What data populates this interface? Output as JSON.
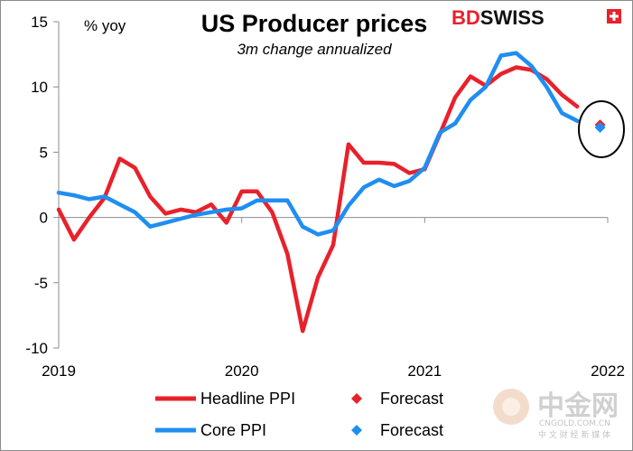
{
  "chart_data": {
    "type": "line",
    "title": "US Producer prices",
    "subtitle": "3m change annualized",
    "ylabel": "% yoy",
    "ylim": [
      -10,
      15
    ],
    "yticks": [
      15,
      10,
      5,
      0,
      -5,
      -10
    ],
    "ytick_labels": [
      "15",
      "10",
      "5",
      "0",
      "-5",
      "-10"
    ],
    "xlim": [
      0,
      36
    ],
    "xticks": [
      0,
      12,
      24,
      36
    ],
    "xtick_labels": [
      "2019",
      "2020",
      "2021",
      "2022"
    ],
    "series": [
      {
        "name": "Headline PPI",
        "color": "#e8212b",
        "x": [
          0,
          1,
          2,
          3,
          4,
          5,
          6,
          7,
          8,
          9,
          10,
          11,
          12,
          13,
          14,
          15,
          16,
          17,
          18,
          19,
          20,
          21,
          22,
          23,
          24,
          25,
          26,
          27,
          28,
          29,
          30,
          31,
          32,
          33,
          34
        ],
        "values": [
          0.6,
          -1.7,
          0.0,
          1.5,
          4.5,
          3.8,
          1.6,
          0.3,
          0.6,
          0.4,
          1.0,
          -0.4,
          2.0,
          2.0,
          0.4,
          -2.8,
          -8.7,
          -4.6,
          -2.1,
          5.6,
          4.2,
          4.2,
          4.1,
          3.4,
          3.7,
          6.4,
          9.2,
          10.8,
          10.1,
          11.0,
          11.5,
          11.3,
          10.6,
          9.4,
          8.5
        ]
      },
      {
        "name": "Core PPI",
        "color": "#1f8ef1",
        "x": [
          0,
          1,
          2,
          3,
          4,
          5,
          6,
          7,
          8,
          9,
          10,
          11,
          12,
          13,
          14,
          15,
          16,
          17,
          18,
          19,
          20,
          21,
          22,
          23,
          24,
          25,
          26,
          27,
          28,
          29,
          30,
          31,
          32,
          33,
          34
        ],
        "values": [
          1.9,
          1.7,
          1.4,
          1.6,
          1.0,
          0.4,
          -0.7,
          -0.4,
          -0.1,
          0.2,
          0.4,
          0.6,
          0.7,
          1.3,
          1.3,
          1.3,
          -0.7,
          -1.3,
          -1.0,
          0.9,
          2.3,
          2.9,
          2.4,
          2.8,
          3.8,
          6.5,
          7.2,
          9.0,
          10.0,
          12.4,
          12.6,
          11.6,
          10.0,
          8.0,
          7.4
        ]
      }
    ],
    "forecast": [
      {
        "name": "Forecast",
        "series": "Headline PPI",
        "x": 35.5,
        "value": 7.1,
        "color": "#e8212b"
      },
      {
        "name": "Forecast",
        "series": "Core PPI",
        "x": 35.5,
        "value": 6.9,
        "color": "#1f8ef1"
      }
    ],
    "legend": [
      {
        "label": "Headline PPI",
        "kind": "line",
        "color": "#e8212b"
      },
      {
        "label": "Forecast",
        "kind": "diamond",
        "color": "#e8212b"
      },
      {
        "label": "Core PPI",
        "kind": "line",
        "color": "#1f8ef1"
      },
      {
        "label": "Forecast",
        "kind": "diamond",
        "color": "#1f8ef1"
      }
    ]
  },
  "brand": {
    "text_bd": "BD",
    "text_swiss": "SWISS",
    "color": "#e8212b"
  },
  "watermark": {
    "main": "中金网",
    "site": "CNGOLD.COM.CN",
    "tagline": "中 文 财 经 新 媒 体"
  }
}
